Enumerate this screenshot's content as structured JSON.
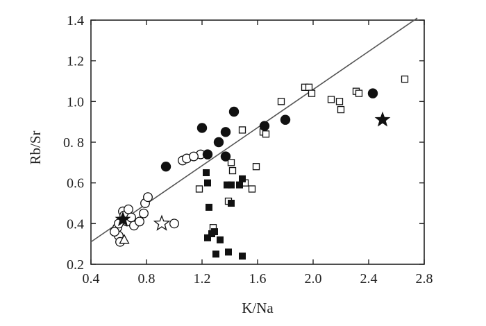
{
  "chart_data": {
    "type": "scatter",
    "title": "",
    "xlabel": "K/Na",
    "ylabel": "Rb/Sr",
    "xlim": [
      0.4,
      2.8
    ],
    "ylim": [
      0.2,
      1.4
    ],
    "x_ticks": [
      "0.4",
      "0.8",
      "1.2",
      "1.6",
      "2.0",
      "2.4",
      "2.8"
    ],
    "y_ticks": [
      "0.2",
      "0.4",
      "0.6",
      "0. 8",
      "1.0",
      "1.2",
      "1.4"
    ],
    "grid": false,
    "legend": "none",
    "colors": {
      "ink": "#111111",
      "axis": "#222222",
      "line": "#555555"
    },
    "trend_line": {
      "x": [
        0.4,
        2.75
      ],
      "y": [
        0.31,
        1.41
      ]
    },
    "series": [
      {
        "marker": "filled-circle",
        "points": [
          [
            0.94,
            0.68
          ],
          [
            1.2,
            0.87
          ],
          [
            1.24,
            0.74
          ],
          [
            1.32,
            0.8
          ],
          [
            1.37,
            0.85
          ],
          [
            1.43,
            0.95
          ],
          [
            1.37,
            0.73
          ],
          [
            1.65,
            0.88
          ],
          [
            1.8,
            0.91
          ],
          [
            2.43,
            1.04
          ]
        ]
      },
      {
        "marker": "open-circle",
        "points": [
          [
            0.59,
            0.38
          ],
          [
            0.6,
            0.34
          ],
          [
            0.61,
            0.31
          ],
          [
            0.63,
            0.46
          ],
          [
            0.64,
            0.44
          ],
          [
            0.66,
            0.41
          ],
          [
            0.67,
            0.47
          ],
          [
            0.69,
            0.43
          ],
          [
            0.71,
            0.39
          ],
          [
            0.75,
            0.41
          ],
          [
            0.78,
            0.45
          ],
          [
            0.79,
            0.5
          ],
          [
            0.81,
            0.53
          ],
          [
            0.57,
            0.36
          ],
          [
            0.6,
            0.4
          ],
          [
            1.0,
            0.4
          ],
          [
            1.06,
            0.71
          ],
          [
            1.09,
            0.72
          ],
          [
            1.19,
            0.74
          ],
          [
            1.14,
            0.73
          ]
        ]
      },
      {
        "marker": "open-square",
        "points": [
          [
            1.18,
            0.57
          ],
          [
            1.28,
            0.38
          ],
          [
            1.39,
            0.51
          ],
          [
            1.41,
            0.7
          ],
          [
            1.42,
            0.66
          ],
          [
            1.49,
            0.86
          ],
          [
            1.51,
            0.6
          ],
          [
            1.56,
            0.57
          ],
          [
            1.59,
            0.68
          ],
          [
            1.64,
            0.85
          ],
          [
            1.66,
            0.84
          ],
          [
            1.77,
            1.0
          ],
          [
            1.94,
            1.07
          ],
          [
            1.97,
            1.07
          ],
          [
            1.99,
            1.04
          ],
          [
            2.13,
            1.01
          ],
          [
            2.19,
            1.0
          ],
          [
            2.2,
            0.96
          ],
          [
            2.31,
            1.05
          ],
          [
            2.33,
            1.04
          ],
          [
            2.66,
            1.11
          ]
        ]
      },
      {
        "marker": "filled-square",
        "points": [
          [
            1.23,
            0.65
          ],
          [
            1.24,
            0.6
          ],
          [
            1.25,
            0.48
          ],
          [
            1.24,
            0.33
          ],
          [
            1.27,
            0.35
          ],
          [
            1.29,
            0.36
          ],
          [
            1.3,
            0.25
          ],
          [
            1.33,
            0.32
          ],
          [
            1.38,
            0.59
          ],
          [
            1.41,
            0.5
          ],
          [
            1.41,
            0.59
          ],
          [
            1.47,
            0.59
          ],
          [
            1.49,
            0.62
          ],
          [
            1.39,
            0.26
          ],
          [
            1.49,
            0.24
          ]
        ]
      },
      {
        "marker": "filled-star",
        "points": [
          [
            2.5,
            0.91
          ],
          [
            0.63,
            0.42
          ]
        ]
      },
      {
        "marker": "open-star",
        "points": [
          [
            0.91,
            0.4
          ]
        ]
      },
      {
        "marker": "open-triangle",
        "points": [
          [
            0.64,
            0.32
          ]
        ]
      }
    ]
  }
}
